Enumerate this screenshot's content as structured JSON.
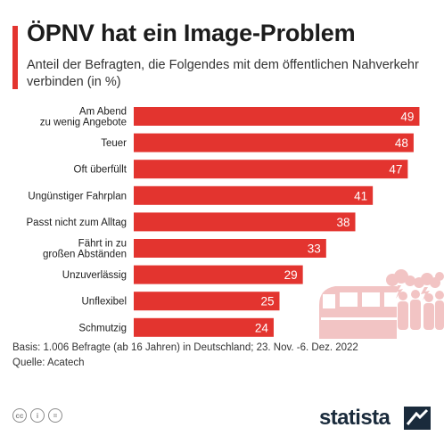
{
  "header": {
    "title": "ÖPNV hat ein Image-Problem",
    "subtitle": "Anteil der Befragten, die Folgendes mit dem öffentlichen Nahverkehr verbinden (in %)"
  },
  "chart_data": {
    "type": "bar",
    "orientation": "horizontal",
    "categories": [
      [
        "Am Abend",
        "zu wenig Angebote"
      ],
      [
        "Teuer"
      ],
      [
        "Oft überfüllt"
      ],
      [
        "Ungünstiger Fahrplan"
      ],
      [
        "Passt nicht zum Alltag"
      ],
      [
        "Fährt in zu",
        "großen Abständen"
      ],
      [
        "Unzuverlässig"
      ],
      [
        "Unflexibel"
      ],
      [
        "Schmutzig"
      ]
    ],
    "values": [
      49,
      48,
      47,
      41,
      38,
      33,
      29,
      25,
      24
    ],
    "xlim": [
      0,
      50
    ],
    "bar_color": "#e3342f",
    "grid": false,
    "data_labels": true
  },
  "footer": {
    "basis": "Basis: 1.006 Befragte (ab 16 Jahren) in Deutschland; 23. Nov. -6. Dez. 2022",
    "source": "Quelle: Acatech",
    "license_icons": [
      "creative-commons-icon",
      "attribution-icon",
      "no-derivatives-icon"
    ],
    "brand": "statista"
  },
  "colors": {
    "accent": "#e3342f",
    "illustration": "#f2c4c4",
    "text": "#1c1c1c",
    "brand": "#1a2b3c"
  }
}
